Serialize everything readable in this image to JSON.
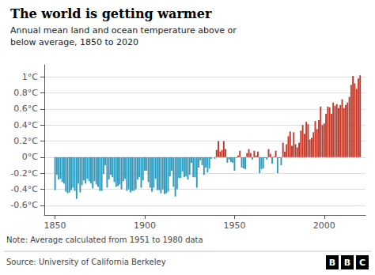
{
  "chart_data": {
    "type": "bar",
    "title": "The world is getting warmer",
    "subtitle": "Annual mean land and ocean temperature above or\nbelow average, 1850 to 2020",
    "annotations": [
      "Note: Average calculated from 1951 to 1980 data",
      "Source: University of California Berkeley",
      "BBC"
    ],
    "x": [
      1850,
      1851,
      1852,
      1853,
      1854,
      1855,
      1856,
      1857,
      1858,
      1859,
      1860,
      1861,
      1862,
      1863,
      1864,
      1865,
      1866,
      1867,
      1868,
      1869,
      1870,
      1871,
      1872,
      1873,
      1874,
      1875,
      1876,
      1877,
      1878,
      1879,
      1880,
      1881,
      1882,
      1883,
      1884,
      1885,
      1886,
      1887,
      1888,
      1889,
      1890,
      1891,
      1892,
      1893,
      1894,
      1895,
      1896,
      1897,
      1898,
      1899,
      1900,
      1901,
      1902,
      1903,
      1904,
      1905,
      1906,
      1907,
      1908,
      1909,
      1910,
      1911,
      1912,
      1913,
      1914,
      1915,
      1916,
      1917,
      1918,
      1919,
      1920,
      1921,
      1922,
      1923,
      1924,
      1925,
      1926,
      1927,
      1928,
      1929,
      1930,
      1931,
      1932,
      1933,
      1934,
      1935,
      1936,
      1937,
      1938,
      1939,
      1940,
      1941,
      1942,
      1943,
      1944,
      1945,
      1946,
      1947,
      1948,
      1949,
      1950,
      1951,
      1952,
      1953,
      1954,
      1955,
      1956,
      1957,
      1958,
      1959,
      1960,
      1961,
      1962,
      1963,
      1964,
      1965,
      1966,
      1967,
      1968,
      1969,
      1970,
      1971,
      1972,
      1973,
      1974,
      1975,
      1976,
      1977,
      1978,
      1979,
      1980,
      1981,
      1982,
      1983,
      1984,
      1985,
      1986,
      1987,
      1988,
      1989,
      1990,
      1991,
      1992,
      1993,
      1994,
      1995,
      1996,
      1997,
      1998,
      1999,
      2000,
      2001,
      2002,
      2003,
      2004,
      2005,
      2006,
      2007,
      2008,
      2009,
      2010,
      2011,
      2012,
      2013,
      2014,
      2015,
      2016,
      2017,
      2018,
      2019,
      2020
    ],
    "values": [
      -0.41,
      -0.22,
      -0.28,
      -0.27,
      -0.31,
      -0.33,
      -0.43,
      -0.45,
      -0.44,
      -0.41,
      -0.38,
      -0.42,
      -0.52,
      -0.33,
      -0.44,
      -0.35,
      -0.29,
      -0.33,
      -0.27,
      -0.3,
      -0.33,
      -0.39,
      -0.3,
      -0.34,
      -0.37,
      -0.42,
      -0.42,
      -0.21,
      -0.1,
      -0.38,
      -0.28,
      -0.22,
      -0.25,
      -0.31,
      -0.37,
      -0.36,
      -0.34,
      -0.4,
      -0.3,
      -0.27,
      -0.42,
      -0.4,
      -0.44,
      -0.42,
      -0.42,
      -0.4,
      -0.28,
      -0.25,
      -0.38,
      -0.29,
      -0.17,
      -0.17,
      -0.31,
      -0.38,
      -0.43,
      -0.38,
      -0.27,
      -0.41,
      -0.41,
      -0.45,
      -0.4,
      -0.46,
      -0.45,
      -0.43,
      -0.24,
      -0.17,
      -0.37,
      -0.49,
      -0.4,
      -0.26,
      -0.26,
      -0.18,
      -0.25,
      -0.24,
      -0.28,
      -0.22,
      -0.07,
      -0.25,
      -0.25,
      -0.38,
      -0.13,
      -0.04,
      -0.1,
      -0.22,
      -0.13,
      -0.19,
      -0.14,
      -0.02,
      -0.0,
      -0.02,
      0.09,
      0.2,
      0.07,
      0.09,
      0.2,
      0.1,
      -0.07,
      -0.03,
      -0.06,
      -0.07,
      -0.17,
      -0.01,
      0.02,
      0.08,
      -0.13,
      -0.14,
      -0.15,
      0.05,
      0.1,
      0.05,
      -0.03,
      0.08,
      0.02,
      0.07,
      -0.2,
      -0.15,
      -0.14,
      -0.01,
      -0.03,
      0.1,
      0.04,
      -0.08,
      0.01,
      0.08,
      -0.2,
      -0.01,
      -0.1,
      0.18,
      0.07,
      0.16,
      0.26,
      0.32,
      0.14,
      0.31,
      0.16,
      0.12,
      0.18,
      0.33,
      0.4,
      0.29,
      0.44,
      0.41,
      0.22,
      0.24,
      0.31,
      0.45,
      0.35,
      0.46,
      0.63,
      0.4,
      0.42,
      0.54,
      0.63,
      0.62,
      0.54,
      0.68,
      0.64,
      0.66,
      0.61,
      0.65,
      0.72,
      0.61,
      0.65,
      0.68,
      0.75,
      0.9,
      1.01,
      0.92,
      0.85,
      0.98,
      1.02
    ],
    "colors": [
      "#2e9bbf",
      "#2e9bbf",
      "#2e9bbf",
      "#2e9bbf",
      "#2e9bbf",
      "#2e9bbf",
      "#2e9bbf",
      "#2e9bbf",
      "#2e9bbf",
      "#2e9bbf",
      "#2e9bbf",
      "#2e9bbf",
      "#2e9bbf",
      "#2e9bbf",
      "#2e9bbf",
      "#2e9bbf",
      "#2e9bbf",
      "#2e9bbf",
      "#2e9bbf",
      "#2e9bbf",
      "#2e9bbf",
      "#2e9bbf",
      "#2e9bbf",
      "#2e9bbf",
      "#2e9bbf",
      "#2e9bbf",
      "#2e9bbf",
      "#2e9bbf",
      "#2e9bbf",
      "#2e9bbf",
      "#2e9bbf",
      "#2e9bbf",
      "#2e9bbf",
      "#2e9bbf",
      "#2e9bbf",
      "#2e9bbf",
      "#2e9bbf",
      "#2e9bbf",
      "#2e9bbf",
      "#2e9bbf",
      "#2e9bbf",
      "#2e9bbf",
      "#2e9bbf",
      "#2e9bbf",
      "#2e9bbf",
      "#2e9bbf",
      "#2e9bbf",
      "#2e9bbf",
      "#2e9bbf",
      "#2e9bbf",
      "#2e9bbf",
      "#2e9bbf",
      "#2e9bbf",
      "#2e9bbf",
      "#2e9bbf",
      "#2e9bbf",
      "#2e9bbf",
      "#2e9bbf",
      "#2e9bbf",
      "#2e9bbf",
      "#2e9bbf",
      "#2e9bbf",
      "#2e9bbf",
      "#2e9bbf",
      "#2e9bbf",
      "#2e9bbf",
      "#2e9bbf",
      "#2e9bbf",
      "#2e9bbf",
      "#2e9bbf",
      "#2e9bbf",
      "#2e9bbf",
      "#2e9bbf",
      "#2e9bbf",
      "#2e9bbf",
      "#2e9bbf",
      "#2e9bbf",
      "#2e9bbf",
      "#2e9bbf",
      "#2e9bbf",
      "#2e9bbf",
      "#2e9bbf",
      "#2e9bbf",
      "#2e9bbf",
      "#2e9bbf",
      "#2e9bbf",
      "#2e9bbf",
      "#2e9bbf",
      "#c0392b",
      "#2e9bbf",
      "#c0392b",
      "#c0392b",
      "#c0392b",
      "#c0392b",
      "#c0392b",
      "#c0392b",
      "#2e9bbf",
      "#2e9bbf",
      "#2e9bbf",
      "#2e9bbf",
      "#2e9bbf",
      "#2e9bbf",
      "#c0392b",
      "#c0392b",
      "#2e9bbf",
      "#2e9bbf",
      "#2e9bbf",
      "#c0392b",
      "#c0392b",
      "#c0392b",
      "#2e9bbf",
      "#c0392b",
      "#c0392b",
      "#c0392b",
      "#2e9bbf",
      "#2e9bbf",
      "#2e9bbf",
      "#2e9bbf",
      "#2e9bbf",
      "#c0392b",
      "#c0392b",
      "#2e9bbf",
      "#c0392b",
      "#c0392b",
      "#2e9bbf",
      "#2e9bbf",
      "#2e9bbf",
      "#c0392b",
      "#c0392b",
      "#c0392b",
      "#c0392b",
      "#c0392b",
      "#c0392b",
      "#c0392b",
      "#c0392b",
      "#c0392b",
      "#c0392b",
      "#c0392b",
      "#c0392b",
      "#c0392b",
      "#c0392b",
      "#c0392b",
      "#c0392b",
      "#c0392b",
      "#c0392b",
      "#c0392b",
      "#c0392b",
      "#c0392b",
      "#c0392b",
      "#c0392b",
      "#c0392b",
      "#c0392b",
      "#c0392b",
      "#c0392b",
      "#c0392b",
      "#c0392b",
      "#c0392b",
      "#c0392b",
      "#c0392b",
      "#c0392b",
      "#c0392b",
      "#c0392b",
      "#c0392b",
      "#c0392b",
      "#c0392b",
      "#c0392b",
      "#c0392b",
      "#c0392b",
      "#c0392b",
      "#c0392b",
      "#c0392b"
    ],
    "xlim": [
      1844,
      2023
    ],
    "xticks": [
      1850,
      1900,
      1950,
      2000
    ],
    "ylim": [
      -0.72,
      1.15
    ],
    "yticks": [
      {
        "value": 1.0,
        "label": "1°C"
      },
      {
        "value": 0.8,
        "label": "0.8°C"
      },
      {
        "value": 0.6,
        "label": "0.6°C"
      },
      {
        "value": 0.4,
        "label": "0.4°C"
      },
      {
        "value": 0.2,
        "label": "0.2°C"
      },
      {
        "value": 0.0,
        "label": "0°C"
      },
      {
        "value": -0.2,
        "label": "-0.2°C"
      },
      {
        "value": -0.4,
        "label": "-0.4°C"
      },
      {
        "value": -0.6,
        "label": "-0.6°C"
      }
    ],
    "grid": true
  }
}
